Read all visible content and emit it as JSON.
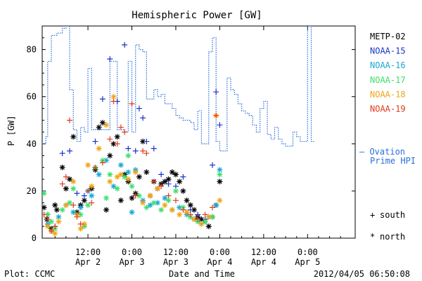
{
  "chart_data": {
    "type": "scatter",
    "title": "Hemispheric Power [GW]",
    "xlabel": "Date and Time",
    "ylabel": "P [GW]",
    "ylim": [
      0,
      90
    ],
    "yticks": [
      0,
      20,
      40,
      60,
      80
    ],
    "x_unit": "hours after 2012/04/02 00:00",
    "xlim": [
      -0.5,
      85
    ],
    "xticks": [
      {
        "t": 12,
        "time": "12:00",
        "date": "Apr 2"
      },
      {
        "t": 24,
        "time": "0:00",
        "date": "Apr 3"
      },
      {
        "t": 36,
        "time": "12:00",
        "date": "Apr 3"
      },
      {
        "t": 48,
        "time": "0:00",
        "date": "Apr 4"
      },
      {
        "t": 60,
        "time": "12:00",
        "date": "Apr 4"
      },
      {
        "t": 72,
        "time": "0:00",
        "date": "Apr 5"
      }
    ],
    "footer_left": "Plot: CCMC",
    "footer_right": "2012/04/05 06:50:08",
    "marker_legend": [
      {
        "symbol": "+",
        "label": "south"
      },
      {
        "symbol": "*",
        "label": "north"
      }
    ],
    "ovation": {
      "name": "— Ovation Prime HPI",
      "line1": "— Ovation",
      "line2": "Prime HPI",
      "color": "#2a6fdb",
      "t": [
        -0.5,
        0.5,
        1,
        2,
        3.5,
        5,
        6,
        7,
        8,
        9,
        10,
        11,
        12,
        12.5,
        13,
        14,
        15,
        16,
        17,
        18,
        20,
        21,
        22,
        23,
        24,
        25,
        25.5,
        26,
        27,
        28,
        29,
        30,
        31,
        32,
        33,
        34,
        35,
        36,
        37,
        38,
        39,
        40,
        41,
        42,
        42.5,
        43,
        44,
        45,
        46,
        47,
        48,
        49,
        50,
        51,
        52,
        53,
        54,
        55,
        56,
        57,
        58,
        59,
        60,
        61,
        62,
        63,
        64,
        65,
        66,
        67,
        68,
        69,
        70,
        71,
        72,
        73,
        74
      ],
      "y": [
        40,
        43,
        75,
        86,
        87,
        89,
        90,
        63,
        46,
        41,
        47,
        45,
        72,
        72,
        46,
        46,
        46,
        46,
        46,
        75,
        46,
        46,
        45,
        75,
        45,
        82,
        82,
        80,
        79,
        59,
        59,
        63,
        60,
        61,
        57,
        57,
        55,
        52,
        51,
        50,
        50,
        49,
        46,
        54,
        54,
        40,
        40,
        79,
        85,
        41,
        37,
        37,
        68,
        63,
        61,
        57,
        54,
        53,
        52,
        48,
        45,
        55,
        58,
        44,
        42,
        47,
        42,
        40,
        39,
        39,
        45,
        43,
        41,
        41,
        90,
        41,
        41
      ]
    },
    "series": [
      {
        "name": "METP-02",
        "color": "#000000",
        "marker": "*",
        "t": [
          0,
          0.8,
          2,
          3,
          3.5,
          5,
          6,
          7,
          8,
          9,
          10,
          11,
          13,
          14,
          15,
          16,
          17,
          18,
          19,
          20,
          21,
          22,
          23,
          24,
          25,
          26,
          27,
          28,
          29,
          30,
          31,
          32,
          33,
          34,
          35,
          36,
          37,
          38,
          39,
          40,
          41,
          42,
          43,
          44,
          45,
          46,
          47,
          48
        ],
        "y": [
          13,
          8,
          4,
          14,
          12,
          30,
          21,
          25,
          43,
          11,
          14,
          16,
          21,
          29,
          47,
          49,
          12,
          35,
          40,
          43,
          16,
          27,
          24,
          17,
          19,
          26,
          41,
          28,
          18,
          24,
          21,
          23,
          24,
          25,
          28,
          27,
          24,
          20,
          16,
          14,
          12,
          9,
          8,
          7,
          5,
          9,
          14,
          24
        ]
      },
      {
        "name": "NOAA-15",
        "color": "#1a34c8",
        "marker": "+",
        "t": [
          1,
          3,
          5,
          7,
          9,
          11,
          14,
          16,
          18,
          20,
          22,
          23,
          25,
          26,
          27,
          28,
          30,
          32,
          34,
          36,
          38,
          40,
          42,
          44,
          46,
          47,
          48
        ],
        "y": [
          10,
          5,
          36,
          37,
          19,
          18,
          41,
          59,
          76,
          58,
          82,
          38,
          37,
          55,
          51,
          41,
          38,
          27,
          23,
          22,
          26,
          12,
          10,
          8,
          31,
          62,
          48
        ]
      },
      {
        "name": "NOAA-16",
        "color": "#19a7d6",
        "marker": "*",
        "t": [
          1,
          2,
          4,
          6,
          8,
          10,
          12,
          13,
          15,
          17,
          19,
          21,
          23,
          24,
          25,
          27,
          29,
          31,
          33,
          35,
          37,
          39,
          41,
          43,
          45,
          47,
          48
        ],
        "y": [
          6,
          3,
          9,
          14,
          11,
          13,
          20,
          18,
          27,
          33,
          22,
          31,
          28,
          11,
          29,
          16,
          14,
          15,
          17,
          12,
          13,
          10,
          8,
          6,
          9,
          14,
          29
        ]
      },
      {
        "name": "NOAA-17",
        "color": "#3ddf6a",
        "marker": "*",
        "t": [
          0,
          1,
          2,
          3,
          5,
          7,
          8,
          10,
          11,
          12,
          14,
          16,
          17,
          18,
          20,
          22,
          23,
          24,
          26,
          28,
          30,
          32,
          34,
          36,
          38,
          40,
          42,
          44,
          46,
          48
        ],
        "y": [
          19,
          10,
          7,
          4,
          12,
          15,
          21,
          10,
          5,
          14,
          30,
          33,
          17,
          27,
          21,
          26,
          35,
          22,
          18,
          13,
          15,
          12,
          16,
          20,
          13,
          9,
          7,
          7,
          9,
          27
        ]
      },
      {
        "name": "NOAA-18",
        "color": "#f2a214",
        "marker": "*",
        "t": [
          1,
          2,
          3,
          4,
          6,
          8,
          9,
          10,
          11,
          12,
          13,
          15,
          17,
          18,
          19,
          20,
          21,
          23,
          25,
          27,
          29,
          31,
          33,
          35,
          37,
          39,
          41,
          43,
          45,
          47,
          48
        ],
        "y": [
          5,
          3,
          2,
          7,
          14,
          24,
          10,
          4,
          6,
          31,
          22,
          38,
          48,
          24,
          60,
          26,
          27,
          25,
          28,
          15,
          18,
          21,
          14,
          12,
          10,
          11,
          8,
          6,
          9,
          52,
          16
        ]
      },
      {
        "name": "NOAA-19",
        "color": "#e13a1a",
        "marker": "+",
        "t": [
          0,
          1,
          2,
          3,
          5,
          6,
          7,
          8,
          9,
          10,
          12,
          13,
          14,
          16,
          18,
          19,
          20,
          21,
          22,
          24,
          25,
          27,
          28,
          30,
          32,
          34,
          36,
          38,
          40,
          42,
          44,
          46,
          47
        ],
        "y": [
          10,
          8,
          3,
          5,
          23,
          26,
          50,
          14,
          9,
          6,
          20,
          15,
          30,
          32,
          42,
          58,
          40,
          47,
          45,
          57,
          18,
          37,
          36,
          24,
          22,
          18,
          16,
          12,
          10,
          8,
          10,
          13,
          52
        ]
      }
    ]
  }
}
